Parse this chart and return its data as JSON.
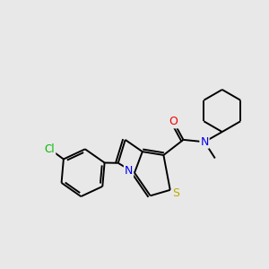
{
  "background_color": "#e8e8e8",
  "bond_color": "#000000",
  "atom_colors": {
    "Cl": "#00bb00",
    "N": "#0000ee",
    "O": "#ee0000",
    "S": "#bbaa00",
    "C": "#000000"
  },
  "figsize": [
    3.0,
    3.0
  ],
  "dpi": 100,
  "xlim": [
    0,
    10
  ],
  "ylim": [
    0,
    10
  ]
}
